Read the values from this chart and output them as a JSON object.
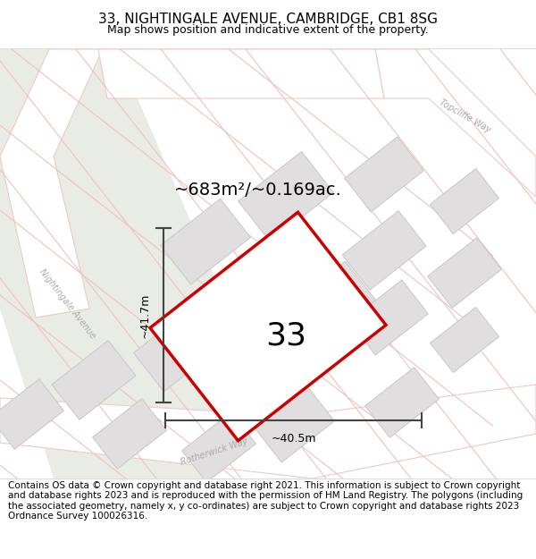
{
  "title": "33, NIGHTINGALE AVENUE, CAMBRIDGE, CB1 8SG",
  "subtitle": "Map shows position and indicative extent of the property.",
  "footer": "Contains OS data © Crown copyright and database right 2021. This information is subject to Crown copyright and database rights 2023 and is reproduced with the permission of HM Land Registry. The polygons (including the associated geometry, namely x, y co-ordinates) are subject to Crown copyright and database rights 2023 Ordnance Survey 100026316.",
  "area_label": "~683m²/~0.169ac.",
  "width_label": "~40.5m",
  "height_label": "~41.7m",
  "property_number": "33",
  "map_bg": "#f2f0ed",
  "green_color": "#e8ece5",
  "road_fill": "#ffffff",
  "road_line_color": "#f0c8c8",
  "parcel_line_color": "#f0c0c0",
  "block_fill": "#e0dede",
  "block_edge": "#c8c8c8",
  "property_fill": "#ffffff",
  "property_border": "#cc0000",
  "dim_line_color": "#444444",
  "text_color": "#333333",
  "road_label_color": "#aaaaaa",
  "title_fontsize": 11,
  "subtitle_fontsize": 9,
  "footer_fontsize": 7.5,
  "area_fontsize": 14,
  "dim_fontsize": 9,
  "prop_num_fontsize": 26,
  "road_label_fontsize": 7
}
